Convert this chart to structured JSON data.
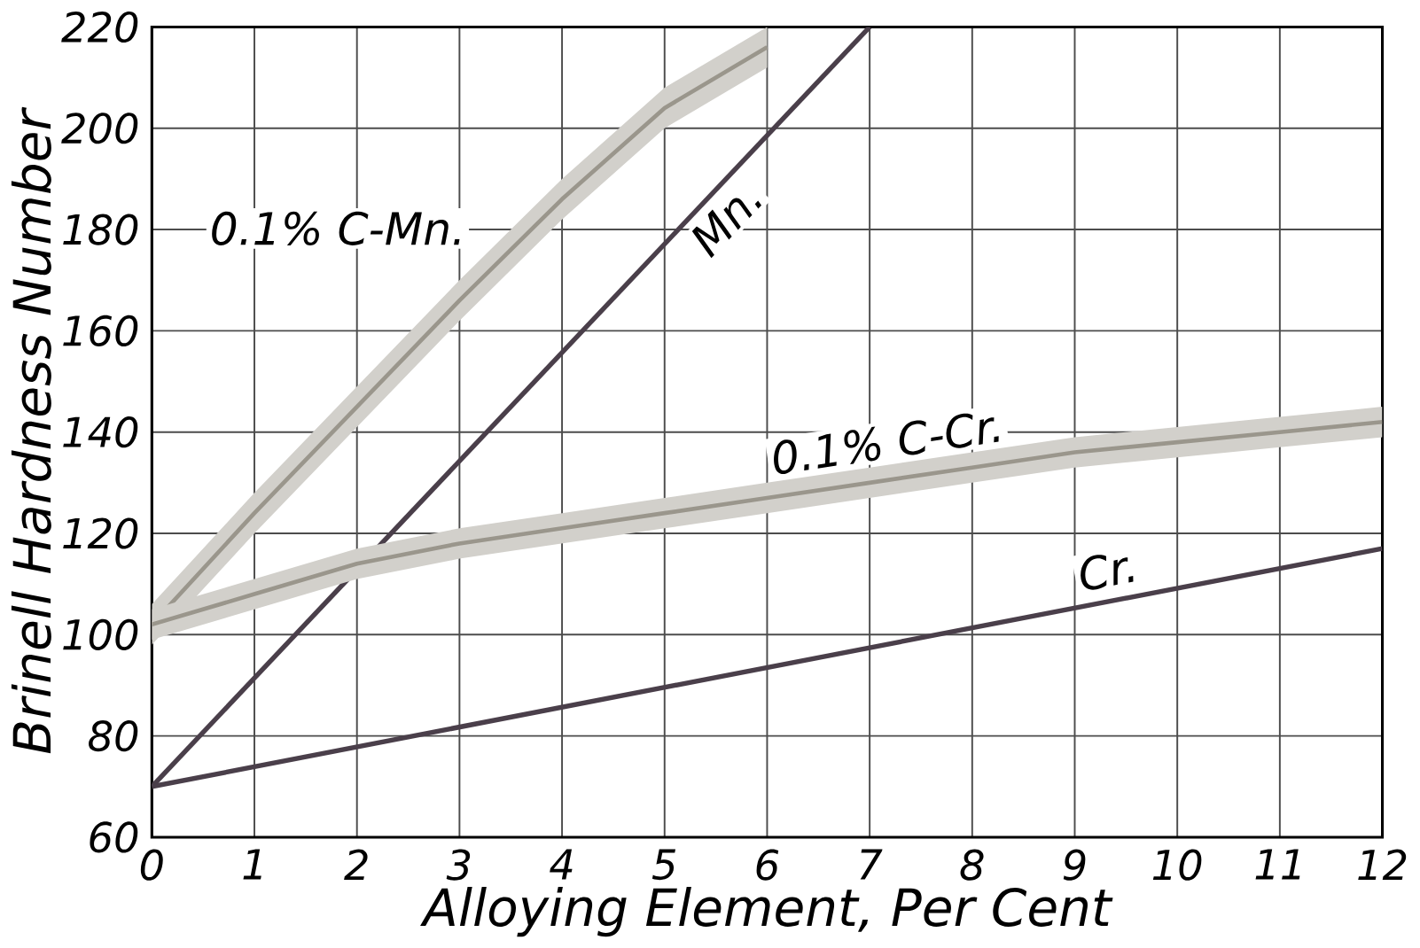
{
  "chart_data": {
    "type": "line",
    "xlabel": "Alloying Element, Per Cent",
    "ylabel": "Brinell Hardness Number",
    "xlim": [
      0,
      12
    ],
    "ylim": [
      60,
      220
    ],
    "xticks": [
      0,
      1,
      2,
      3,
      4,
      5,
      6,
      7,
      8,
      9,
      10,
      11,
      12
    ],
    "yticks": [
      60,
      80,
      100,
      120,
      140,
      160,
      180,
      200,
      220
    ],
    "grid": true,
    "marker": "none",
    "line_style": "solid",
    "series": [
      {
        "name": "0.1% C-Mn.",
        "color": "#9a968c",
        "x": [
          0,
          1,
          2,
          3,
          4,
          5,
          6
        ],
        "values": [
          102,
          124,
          145,
          166,
          186,
          204,
          216
        ],
        "lower": [
          98,
          120,
          141,
          162,
          182,
          200,
          212
        ],
        "upper": [
          106,
          128,
          149,
          170,
          190,
          208,
          220
        ]
      },
      {
        "name": "Mn.",
        "color": "#4a3f4a",
        "x": [
          0,
          7
        ],
        "values": [
          70,
          220
        ]
      },
      {
        "name": "0.1% C-Cr.",
        "color": "#9a968c",
        "x": [
          0,
          1,
          2,
          3,
          4,
          5,
          6,
          7,
          8,
          9,
          10,
          11,
          12
        ],
        "values": [
          102,
          108,
          114,
          118,
          121,
          124,
          127,
          130,
          133,
          136,
          138,
          140,
          142
        ],
        "lower": [
          99,
          105,
          111,
          115,
          118,
          121,
          124,
          127,
          130,
          133,
          135,
          137,
          139
        ],
        "upper": [
          105,
          111,
          117,
          121,
          124,
          127,
          130,
          133,
          136,
          139,
          141,
          143,
          145
        ]
      },
      {
        "name": "Cr.",
        "color": "#4a3f4a",
        "x": [
          0,
          12
        ],
        "values": [
          70,
          117
        ]
      }
    ]
  }
}
